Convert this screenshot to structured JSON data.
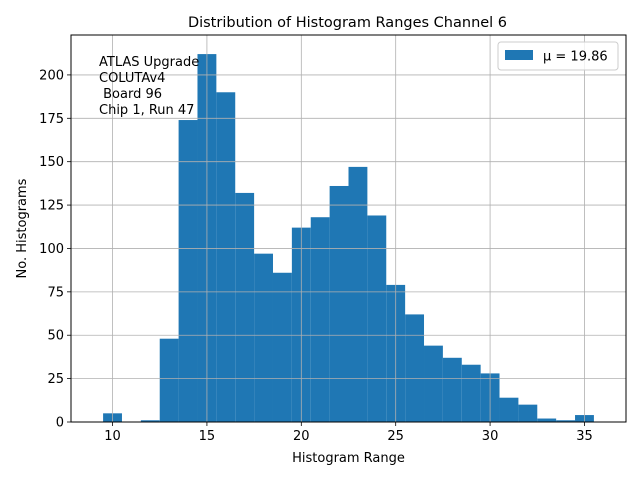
{
  "chart_data": {
    "type": "bar",
    "title": "Distribution of Histogram Ranges Channel 6",
    "xlabel": "Histogram Range",
    "ylabel": "No. Histograms",
    "xlim": [
      7.8,
      37.2
    ],
    "ylim": [
      0,
      223
    ],
    "x_ticks": [
      10,
      15,
      20,
      25,
      30,
      35
    ],
    "y_ticks": [
      0,
      25,
      50,
      75,
      100,
      125,
      150,
      175,
      200
    ],
    "grid": true,
    "bin_width": 1,
    "bins": [
      {
        "x": 10,
        "value": 5
      },
      {
        "x": 11,
        "value": 0
      },
      {
        "x": 12,
        "value": 1
      },
      {
        "x": 13,
        "value": 48
      },
      {
        "x": 14,
        "value": 174
      },
      {
        "x": 15,
        "value": 212
      },
      {
        "x": 16,
        "value": 190
      },
      {
        "x": 17,
        "value": 132
      },
      {
        "x": 18,
        "value": 97
      },
      {
        "x": 19,
        "value": 86
      },
      {
        "x": 20,
        "value": 112
      },
      {
        "x": 21,
        "value": 118
      },
      {
        "x": 22,
        "value": 136
      },
      {
        "x": 23,
        "value": 147
      },
      {
        "x": 24,
        "value": 119
      },
      {
        "x": 25,
        "value": 79
      },
      {
        "x": 26,
        "value": 62
      },
      {
        "x": 27,
        "value": 44
      },
      {
        "x": 28,
        "value": 37
      },
      {
        "x": 29,
        "value": 33
      },
      {
        "x": 30,
        "value": 28
      },
      {
        "x": 31,
        "value": 14
      },
      {
        "x": 32,
        "value": 10
      },
      {
        "x": 33,
        "value": 2
      },
      {
        "x": 34,
        "value": 1
      },
      {
        "x": 35,
        "value": 4
      }
    ],
    "series": [
      {
        "name": "μ = 19.86",
        "color": "#1f77b4"
      }
    ],
    "legend_position": "top-right",
    "annotation_lines": [
      "ATLAS Upgrade",
      "COLUTAv4",
      " Board 96",
      "Chip 1, Run 47"
    ]
  }
}
